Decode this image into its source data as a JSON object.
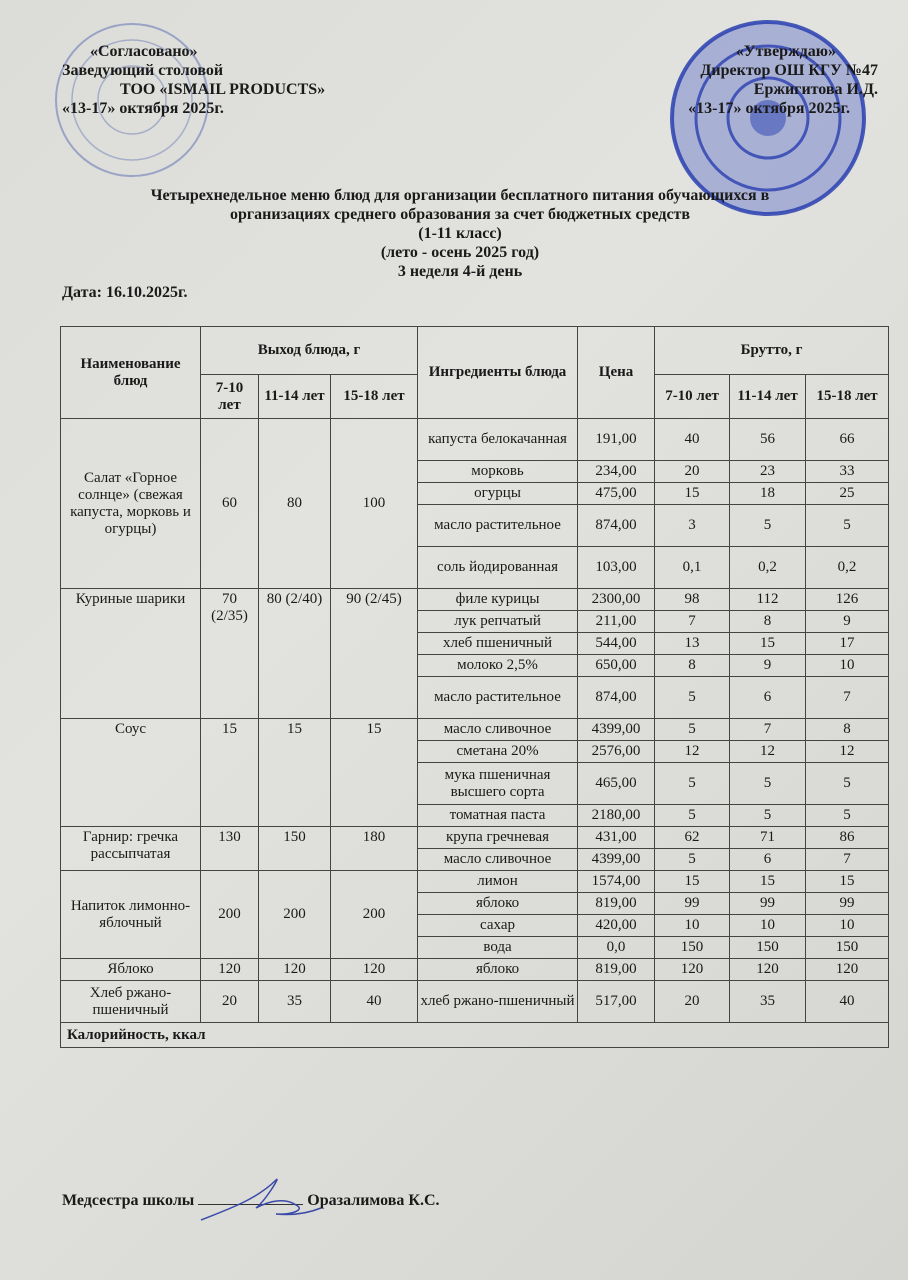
{
  "approval_left": {
    "line1": "«Согласовано»",
    "line2": "Заведующий столовой",
    "line3": "ТОО «ISMAIL PRODUCTS»",
    "line4": "«13-17» октября 2025г."
  },
  "approval_right": {
    "line1": "«Утверждаю»",
    "line2": "Директор ОШ КГУ №47",
    "line3": "Ержигитова И.Д.",
    "line4": "«13-17» октября 2025г."
  },
  "title": {
    "line1": "Четырехнедельное меню блюд для организации бесплатного питания обучающихся в",
    "line2": "организациях среднего образования за счет бюджетных средств",
    "line3": "(1-11 класс)",
    "line4": "(лето - осень 2025 год)",
    "line5": "3 неделя 4-й день"
  },
  "date": "Дата: 16.10.2025г.",
  "table": {
    "headers": {
      "dish": "Наименование блюд",
      "yield": "Выход блюда, г",
      "ingredients": "Ингредиенты блюда",
      "price": "Цена",
      "brutto": "Брутто, г",
      "ages": [
        "7-10 лет",
        "11-14 лет",
        "15-18 лет"
      ]
    },
    "dishes": [
      {
        "name": "Салат «Горное солнце» (свежая капуста, морковь и огурцы)",
        "yields": [
          "60",
          "80",
          "100"
        ],
        "ingredients": [
          {
            "name": "капуста белокачанная",
            "price": "191,00",
            "brutto": [
              "40",
              "56",
              "66"
            ]
          },
          {
            "name": "морковь",
            "price": "234,00",
            "brutto": [
              "20",
              "23",
              "33"
            ]
          },
          {
            "name": "огурцы",
            "price": "475,00",
            "brutto": [
              "15",
              "18",
              "25"
            ]
          },
          {
            "name": "масло растительное",
            "price": "874,00",
            "brutto": [
              "3",
              "5",
              "5"
            ]
          },
          {
            "name": "соль йодированная",
            "price": "103,00",
            "brutto": [
              "0,1",
              "0,2",
              "0,2"
            ]
          }
        ]
      },
      {
        "name": "Куриные шарики",
        "yields": [
          "70 (2/35)",
          "80 (2/40)",
          "90 (2/45)"
        ],
        "ingredients": [
          {
            "name": "филе курицы",
            "price": "2300,00",
            "brutto": [
              "98",
              "112",
              "126"
            ]
          },
          {
            "name": "лук репчатый",
            "price": "211,00",
            "brutto": [
              "7",
              "8",
              "9"
            ]
          },
          {
            "name": "хлеб пшеничный",
            "price": "544,00",
            "brutto": [
              "13",
              "15",
              "17"
            ]
          },
          {
            "name": "молоко 2,5%",
            "price": "650,00",
            "brutto": [
              "8",
              "9",
              "10"
            ]
          },
          {
            "name": "масло растительное",
            "price": "874,00",
            "brutto": [
              "5",
              "6",
              "7"
            ]
          }
        ]
      },
      {
        "name": "Соус",
        "yields": [
          "15",
          "15",
          "15"
        ],
        "ingredients": [
          {
            "name": "масло сливочное",
            "price": "4399,00",
            "brutto": [
              "5",
              "7",
              "8"
            ]
          },
          {
            "name": "сметана 20%",
            "price": "2576,00",
            "brutto": [
              "12",
              "12",
              "12"
            ]
          },
          {
            "name": "мука пшеничная высшего сорта",
            "price": "465,00",
            "brutto": [
              "5",
              "5",
              "5"
            ]
          },
          {
            "name": "томатная паста",
            "price": "2180,00",
            "brutto": [
              "5",
              "5",
              "5"
            ]
          }
        ]
      },
      {
        "name": "Гарнир: гречка рассыпчатая",
        "yields": [
          "130",
          "150",
          "180"
        ],
        "ingredients": [
          {
            "name": "крупа гречневая",
            "price": "431,00",
            "brutto": [
              "62",
              "71",
              "86"
            ]
          },
          {
            "name": "масло сливочное",
            "price": "4399,00",
            "brutto": [
              "5",
              "6",
              "7"
            ]
          }
        ]
      },
      {
        "name": "Напиток лимонно-яблочный",
        "yields": [
          "200",
          "200",
          "200"
        ],
        "ingredients": [
          {
            "name": "лимон",
            "price": "1574,00",
            "brutto": [
              "15",
              "15",
              "15"
            ]
          },
          {
            "name": "яблоко",
            "price": "819,00",
            "brutto": [
              "99",
              "99",
              "99"
            ]
          },
          {
            "name": "сахар",
            "price": "420,00",
            "brutto": [
              "10",
              "10",
              "10"
            ]
          },
          {
            "name": "вода",
            "price": "0,0",
            "brutto": [
              "150",
              "150",
              "150"
            ]
          }
        ]
      },
      {
        "name": "Яблоко",
        "yields": [
          "120",
          "120",
          "120"
        ],
        "ingredients": [
          {
            "name": "яблоко",
            "price": "819,00",
            "brutto": [
              "120",
              "120",
              "120"
            ]
          }
        ]
      },
      {
        "name": "Хлеб ржано-пшеничный",
        "yields": [
          "20",
          "35",
          "40"
        ],
        "ingredients": [
          {
            "name": "хлеб ржано-пшеничный",
            "price": "517,00",
            "brutto": [
              "20",
              "35",
              "40"
            ]
          }
        ]
      }
    ],
    "calories_label": "Калорийность, ккал"
  },
  "footer": {
    "role": "Медсестра школы",
    "name": "Оразалимова К.С."
  },
  "colors": {
    "stamp_blue": "#2a3fb0",
    "ink": "#1a1a1a",
    "paper": "#dcdcd8"
  }
}
